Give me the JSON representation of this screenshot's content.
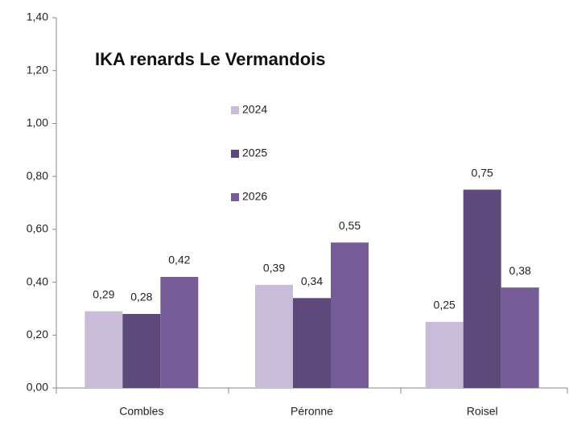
{
  "chart_data": {
    "type": "bar",
    "title": "IKA renards Le Vermandois",
    "categories": [
      "Combles",
      "Péronne",
      "Roisel"
    ],
    "series": [
      {
        "name": "2024",
        "color": "#c9bcd8",
        "values": [
          0.29,
          0.39,
          0.25
        ],
        "value_labels": [
          "0,29",
          "0,39",
          "0,25"
        ]
      },
      {
        "name": "2025",
        "color": "#5e4a7a",
        "values": [
          0.28,
          0.34,
          0.75
        ],
        "value_labels": [
          "0,28",
          "0,34",
          "0,75"
        ]
      },
      {
        "name": "2026",
        "color": "#775d97",
        "values": [
          0.42,
          0.55,
          0.38
        ],
        "value_labels": [
          "0,42",
          "0,55",
          "0,38"
        ]
      }
    ],
    "ylim": [
      0,
      1.4
    ],
    "yticks": [
      {
        "value": 0,
        "label": "0,00"
      },
      {
        "value": 0.2,
        "label": "0,20"
      },
      {
        "value": 0.4,
        "label": "0,40"
      },
      {
        "value": 0.6,
        "label": "0,60"
      },
      {
        "value": 0.8,
        "label": "0,80"
      },
      {
        "value": 1.0,
        "label": "1,00"
      },
      {
        "value": 1.2,
        "label": "1,20"
      },
      {
        "value": 1.4,
        "label": "1,40"
      }
    ],
    "grid": false
  }
}
